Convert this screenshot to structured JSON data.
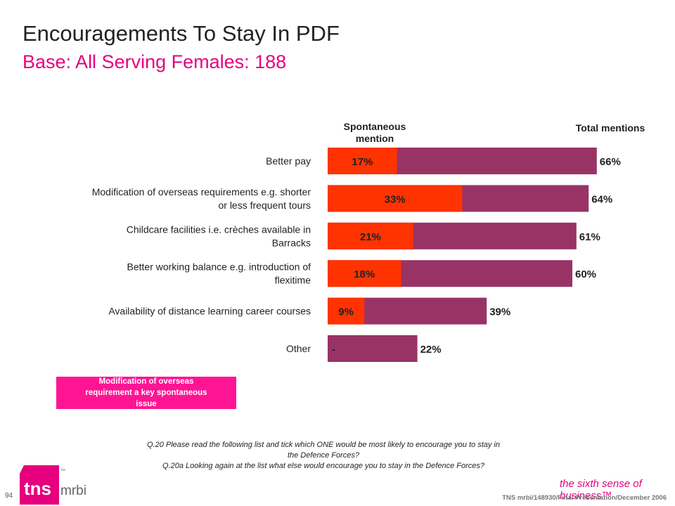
{
  "page": {
    "title": "Encouragements To Stay In PDF",
    "subtitle": "Base:  All Serving Females:  188",
    "spontaneous_header": "Spontaneous mention",
    "total_header": "Total mentions",
    "callout": "Modification of overseas requirement a key spontaneous issue",
    "question_1": "Q.20  Please read the following list and tick which ONE would be most likely to encourage  you to stay in the Defence Forces?",
    "question_2": "Q.20a  Looking again at the list what else would encourage you to stay in the Defence Forces?",
    "page_number": "94",
    "logo_text_tns": "tns",
    "logo_text_mrbi": "mrbi",
    "logo_tm": "™",
    "tagline": "the sixth sense of business™",
    "footer": "TNS mrbi/148930/Final Presentation/December 2006",
    "colors": {
      "spontaneous": "#ff3300",
      "total": "#993366",
      "accent": "#e6007e"
    }
  },
  "chart_data": {
    "type": "bar",
    "orientation": "horizontal",
    "categories": [
      "Better pay",
      "Modification of overseas requirements e.g. shorter or less frequent tours",
      "Childcare facilities i.e. crèches available in Barracks",
      "Better working balance e.g. introduction of flexitime",
      "Availability of distance learning career courses",
      "Other"
    ],
    "series": [
      {
        "name": "Spontaneous mention",
        "values": [
          17,
          33,
          21,
          18,
          9,
          0
        ],
        "labels": [
          "17%",
          "33%",
          "21%",
          "18%",
          "9%",
          "-"
        ]
      },
      {
        "name": "Total mentions",
        "values": [
          66,
          64,
          61,
          60,
          39,
          22
        ],
        "labels": [
          "66%",
          "64%",
          "61%",
          "60%",
          "39%",
          "22%"
        ]
      }
    ]
  }
}
